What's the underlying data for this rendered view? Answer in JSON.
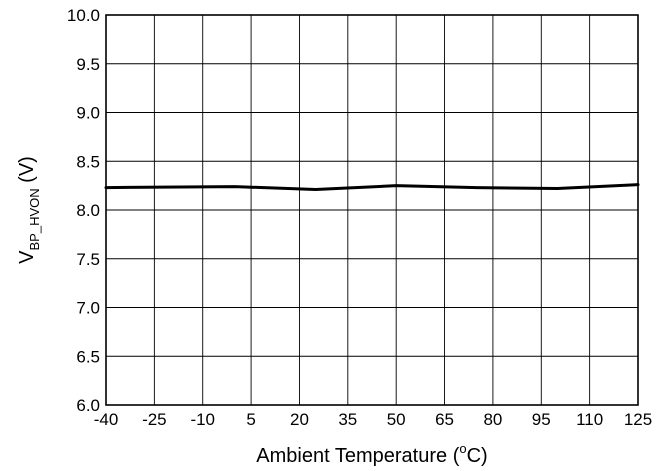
{
  "chart_data": {
    "type": "line",
    "xlabel": "Ambient Temperature",
    "xlabel_unit_open": " (",
    "xlabel_unit_sup": "o",
    "xlabel_unit_close": "C)",
    "ylabel_main": "V",
    "ylabel_sub": "BP_HVON",
    "ylabel_unit": " (V)",
    "xlim": [
      -40,
      125
    ],
    "ylim": [
      6.0,
      10.0
    ],
    "x_ticks": [
      -40,
      -25,
      -10,
      5,
      20,
      35,
      50,
      65,
      80,
      95,
      110,
      125
    ],
    "y_ticks": [
      6.0,
      6.5,
      7.0,
      7.5,
      8.0,
      8.5,
      9.0,
      9.5,
      10.0
    ],
    "x_tick_labels": [
      "-40",
      "-25",
      "-10",
      "5",
      "20",
      "35",
      "50",
      "65",
      "80",
      "95",
      "110",
      "125"
    ],
    "y_tick_labels": [
      "6.0",
      "6.5",
      "7.0",
      "7.5",
      "8.0",
      "8.5",
      "9.0",
      "9.5",
      "10.0"
    ],
    "grid": true,
    "legend": "none",
    "series": [
      {
        "x": [
          -40,
          0,
          25,
          50,
          75,
          100,
          125
        ],
        "y": [
          8.23,
          8.24,
          8.21,
          8.25,
          8.23,
          8.22,
          8.26
        ],
        "color": "#000000"
      }
    ]
  }
}
